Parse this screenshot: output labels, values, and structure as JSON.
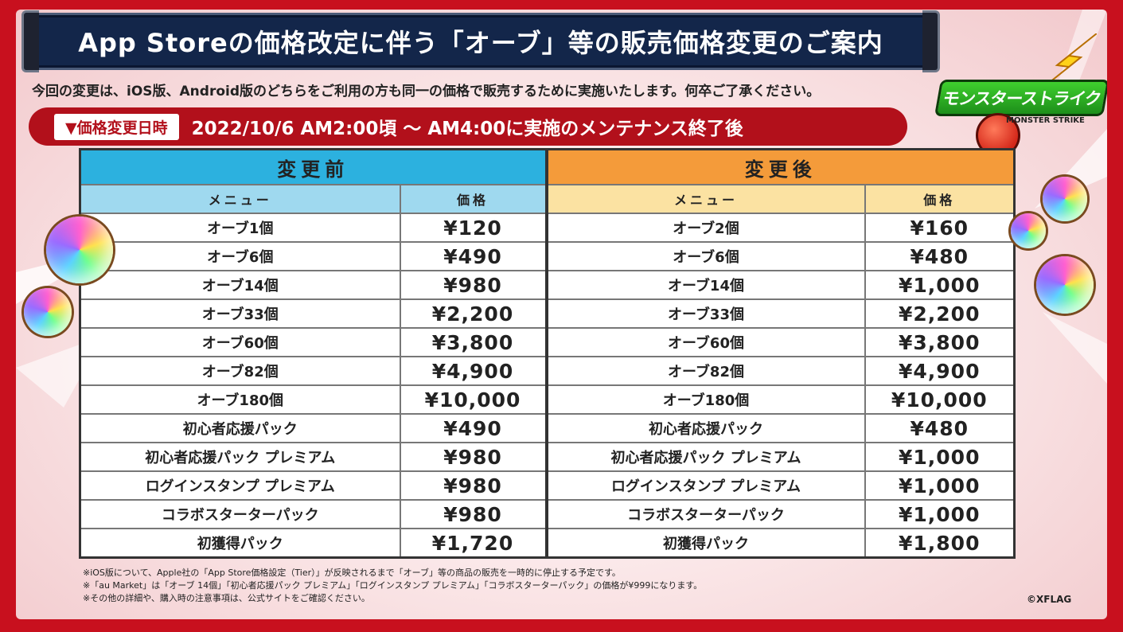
{
  "title": "App Storeの価格改定に伴う「オーブ」等の販売価格変更のご案内",
  "intro": "今回の変更は、iOS版、Android版のどちらをご利用の方も同一の価格で販売するために実施いたします。何卒ご了承ください。",
  "date_label": "▼価格変更日時",
  "date_value": "2022/10/6 AM2:00頃 〜 AM4:00に実施のメンテナンス終了後",
  "logo": {
    "text": "モンスターストライク",
    "sub": "MONSTER STRIKE"
  },
  "table": {
    "before_header": "変更前",
    "after_header": "変更後",
    "col_menu": "メニュー",
    "col_price": "価格",
    "before_color": "#2cb1df",
    "after_color": "#f49b3a",
    "rows": [
      {
        "before_menu": "オーブ1個",
        "before_price": "¥120",
        "before_hl": true,
        "after_menu": "オーブ2個",
        "after_price": "¥160",
        "after_hl": true
      },
      {
        "before_menu": "オーブ6個",
        "before_price": "¥490",
        "before_hl": true,
        "after_menu": "オーブ6個",
        "after_price": "¥480",
        "after_hl": true
      },
      {
        "before_menu": "オーブ14個",
        "before_price": "¥980",
        "before_hl": true,
        "after_menu": "オーブ14個",
        "after_price": "¥1,000",
        "after_hl": true
      },
      {
        "before_menu": "オーブ33個",
        "before_price": "¥2,200",
        "before_hl": false,
        "after_menu": "オーブ33個",
        "after_price": "¥2,200",
        "after_hl": false
      },
      {
        "before_menu": "オーブ60個",
        "before_price": "¥3,800",
        "before_hl": false,
        "after_menu": "オーブ60個",
        "after_price": "¥3,800",
        "after_hl": false
      },
      {
        "before_menu": "オーブ82個",
        "before_price": "¥4,900",
        "before_hl": false,
        "after_menu": "オーブ82個",
        "after_price": "¥4,900",
        "after_hl": false
      },
      {
        "before_menu": "オーブ180個",
        "before_price": "¥10,000",
        "before_hl": false,
        "after_menu": "オーブ180個",
        "after_price": "¥10,000",
        "after_hl": false
      },
      {
        "before_menu": "初心者応援パック",
        "before_price": "¥490",
        "before_hl": true,
        "after_menu": "初心者応援パック",
        "after_price": "¥480",
        "after_hl": true
      },
      {
        "before_menu": "初心者応援パック プレミアム",
        "before_price": "¥980",
        "before_hl": true,
        "after_menu": "初心者応援パック プレミアム",
        "after_price": "¥1,000",
        "after_hl": true
      },
      {
        "before_menu": "ログインスタンプ プレミアム",
        "before_price": "¥980",
        "before_hl": true,
        "after_menu": "ログインスタンプ プレミアム",
        "after_price": "¥1,000",
        "after_hl": true
      },
      {
        "before_menu": "コラボスターターパック",
        "before_price": "¥980",
        "before_hl": true,
        "after_menu": "コラボスターターパック",
        "after_price": "¥1,000",
        "after_hl": true
      },
      {
        "before_menu": "初獲得パック",
        "before_price": "¥1,720",
        "before_hl": true,
        "after_menu": "初獲得パック",
        "after_price": "¥1,800",
        "after_hl": true
      }
    ]
  },
  "notes": [
    "※iOS版について、Apple社の「App Store価格設定（Tier）」が反映されるまで「オーブ」等の商品の販売を一時的に停止する予定です。",
    "※「au Market」は「オーブ 14個」「初心者応援パック プレミアム」「ログインスタンプ プレミアム」「コラボスターターパック」の価格が¥999になります。",
    "※その他の詳細や、購入時の注意事項は、公式サイトをご確認ください。"
  ],
  "copyright": "©XFLAG"
}
